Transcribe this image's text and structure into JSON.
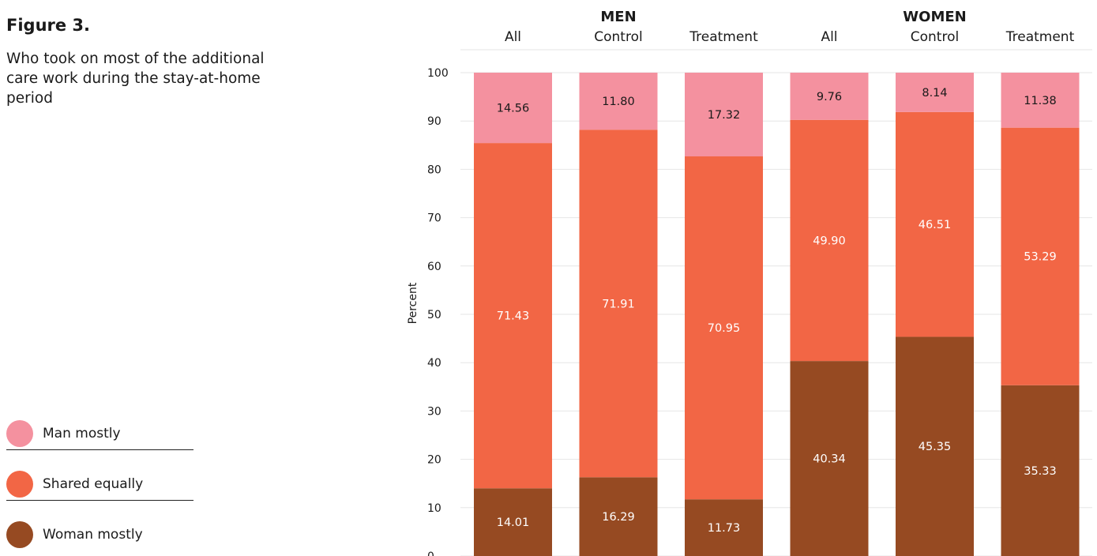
{
  "figure": {
    "title": "Figure 3.",
    "description": "Who took on most of the additional care work during the stay-at-home period"
  },
  "colors": {
    "man_mostly": "#f4919f",
    "shared_equally": "#f26645",
    "woman_mostly": "#964a22",
    "grid": "#e6e6e6",
    "label_on_light": "#1a1a1a",
    "label_on_dark": "#ffffff"
  },
  "chart_data": {
    "type": "bar",
    "stacked": true,
    "title": "",
    "xlabel": "",
    "ylabel": "Percent",
    "ylim": [
      0,
      100
    ],
    "yticks": [
      0,
      10,
      20,
      30,
      40,
      50,
      60,
      70,
      80,
      90,
      100
    ],
    "grid": true,
    "legend_position": "left",
    "groups": [
      {
        "name": "MEN",
        "categories": [
          "All",
          "Control",
          "Treatment"
        ]
      },
      {
        "name": "WOMEN",
        "categories": [
          "All",
          "Control",
          "Treatment"
        ]
      }
    ],
    "categories": [
      "All",
      "Control",
      "Treatment",
      "All",
      "Control",
      "Treatment"
    ],
    "series": [
      {
        "name": "Woman mostly",
        "color_key": "woman_mostly",
        "values": [
          14.01,
          16.29,
          11.73,
          40.34,
          45.35,
          35.33
        ]
      },
      {
        "name": "Shared equally",
        "color_key": "shared_equally",
        "values": [
          71.43,
          71.91,
          70.95,
          49.9,
          46.51,
          53.29
        ]
      },
      {
        "name": "Man mostly",
        "color_key": "man_mostly",
        "values": [
          14.56,
          11.8,
          17.32,
          9.76,
          8.14,
          11.38
        ]
      }
    ],
    "value_labels": [
      [
        "14.01",
        "16.29",
        "11.73",
        "40.34",
        "45.35",
        "35.33"
      ],
      [
        "71.43",
        "71.91",
        "70.95",
        "49.90",
        "46.51",
        "53.29"
      ],
      [
        "14.56",
        "11.80",
        "17.32",
        "9.76",
        "8.14",
        "11.38"
      ]
    ]
  },
  "legend": {
    "items": [
      {
        "label": "Man mostly",
        "color_key": "man_mostly"
      },
      {
        "label": "Shared equally",
        "color_key": "shared_equally"
      },
      {
        "label": "Woman mostly",
        "color_key": "woman_mostly"
      }
    ]
  }
}
